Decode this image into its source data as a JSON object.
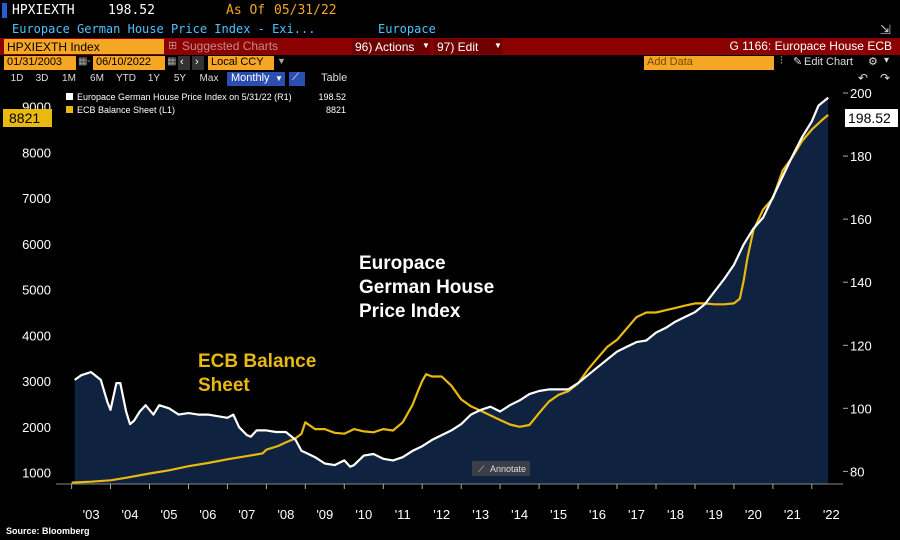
{
  "header": {
    "ticker": "HPXIEXTH",
    "last_value": "198.52",
    "as_of_label": "As Of",
    "as_of_date": "05/31/22",
    "description": "Europace German House Price Index - Exi...",
    "source_name": "Europace"
  },
  "command_bar": {
    "security": "HPXIEXTH Index",
    "suggested_charts": "Suggested Charts",
    "actions": "96) Actions",
    "edit": "97) Edit",
    "chart_name": "G 1166: Europace House ECB"
  },
  "date_bar": {
    "start_date": "01/31/2003",
    "end_date": "06/10/2022",
    "currency": "Local CCY",
    "add_data": "Add Data",
    "edit_chart": "Edit Chart"
  },
  "period_bar": {
    "periods": [
      "1D",
      "3D",
      "1M",
      "6M",
      "YTD",
      "1Y",
      "5Y",
      "Max"
    ],
    "frequency": "Monthly",
    "table": "Table"
  },
  "legend": {
    "house_label": "Europace German House Price Index on 5/31/22 (R1)",
    "house_value": "198.52",
    "ecb_label": "ECB Balance Sheet (L1)",
    "ecb_value": "8821"
  },
  "annotations": {
    "house_title": [
      "Europace",
      "German House",
      "Price Index"
    ],
    "ecb_title": [
      "ECB Balance",
      "Sheet"
    ],
    "annotate_button": "Annotate",
    "left_value_tag": "8821",
    "right_value_tag": "198.52"
  },
  "source": "Source: Bloomberg",
  "colors": {
    "ecb": "#e8b90f",
    "house": "#ffffff",
    "area": "#0f2240",
    "header_blue": "#1d3a8a",
    "command_red": "#8b0000",
    "amber": "#f5a623"
  },
  "chart_data": {
    "type": "line",
    "x_tick_labels": [
      "'03",
      "'04",
      "'05",
      "'06",
      "'07",
      "'08",
      "'09",
      "'10",
      "'11",
      "'12",
      "'13",
      "'14",
      "'15",
      "'16",
      "'17",
      "'18",
      "'19",
      "'20",
      "'21",
      "'22"
    ],
    "left_axis": {
      "ticks": [
        1000,
        2000,
        3000,
        4000,
        5000,
        6000,
        7000,
        8000,
        9000
      ],
      "range": [
        750,
        9300
      ]
    },
    "right_axis": {
      "ticks": [
        80,
        100,
        120,
        140,
        160,
        180,
        200
      ],
      "range": [
        76,
        200
      ]
    },
    "series": [
      {
        "name": "Europace German House Price Index on 5/31/22 (R1)",
        "axis": "right",
        "x": [
          2003.08,
          2003.25,
          2003.5,
          2003.75,
          2003.92,
          2004.0,
          2004.15,
          2004.25,
          2004.4,
          2004.5,
          2004.6,
          2004.75,
          2004.9,
          2005.0,
          2005.1,
          2005.25,
          2005.5,
          2005.75,
          2006.0,
          2006.25,
          2006.5,
          2006.75,
          2007.0,
          2007.15,
          2007.3,
          2007.5,
          2007.6,
          2007.75,
          2008.0,
          2008.25,
          2008.5,
          2008.75,
          2008.9,
          2009.0,
          2009.25,
          2009.5,
          2009.75,
          2010.0,
          2010.15,
          2010.25,
          2010.5,
          2010.75,
          2011.0,
          2011.25,
          2011.5,
          2011.75,
          2012.0,
          2012.25,
          2012.5,
          2012.75,
          2013.0,
          2013.25,
          2013.5,
          2013.75,
          2014.0,
          2014.25,
          2014.5,
          2014.75,
          2015.0,
          2015.25,
          2015.5,
          2015.75,
          2016.0,
          2016.25,
          2016.5,
          2016.75,
          2017.0,
          2017.25,
          2017.5,
          2017.75,
          2018.0,
          2018.25,
          2018.5,
          2018.75,
          2019.0,
          2019.25,
          2019.5,
          2019.75,
          2020.0,
          2020.25,
          2020.5,
          2020.75,
          2021.0,
          2021.25,
          2021.5,
          2021.75,
          2022.0,
          2022.17,
          2022.42
        ],
        "values": [
          109.0,
          110.5,
          111.5,
          109.0,
          102.0,
          99.5,
          108.0,
          108.0,
          99.0,
          95.0,
          96.0,
          99.0,
          101.0,
          99.5,
          98.0,
          101.0,
          100.0,
          98.0,
          98.5,
          98.0,
          98.0,
          97.5,
          97.0,
          98.0,
          94.0,
          91.5,
          91.0,
          93.0,
          93.0,
          92.5,
          92.5,
          90.0,
          86.5,
          86.0,
          84.5,
          82.5,
          82.0,
          83.5,
          81.5,
          82.0,
          85.0,
          85.5,
          84.0,
          83.5,
          84.5,
          86.5,
          88.0,
          90.0,
          91.5,
          93.0,
          95.0,
          98.0,
          99.5,
          100.5,
          99.0,
          101.0,
          102.5,
          104.5,
          105.5,
          106.0,
          106.0,
          106.0,
          108.0,
          110.5,
          113.0,
          115.5,
          118.0,
          119.5,
          121.0,
          121.5,
          124.0,
          125.5,
          127.5,
          129.0,
          130.5,
          133.0,
          137.0,
          141.0,
          145.5,
          152.0,
          157.0,
          160.5,
          167.0,
          173.5,
          180.0,
          186.0,
          191.0,
          196.0,
          198.52
        ]
      },
      {
        "name": "ECB Balance Sheet (L1)",
        "axis": "left",
        "x": [
          2003.0,
          2003.5,
          2004.0,
          2004.5,
          2005.0,
          2005.5,
          2006.0,
          2006.5,
          2007.0,
          2007.5,
          2007.9,
          2008.0,
          2008.3,
          2008.5,
          2008.75,
          2008.9,
          2009.0,
          2009.25,
          2009.5,
          2009.75,
          2010.0,
          2010.25,
          2010.5,
          2010.75,
          2011.0,
          2011.25,
          2011.5,
          2011.6,
          2011.75,
          2011.9,
          2012.0,
          2012.1,
          2012.25,
          2012.5,
          2012.75,
          2013.0,
          2013.25,
          2013.5,
          2013.75,
          2014.0,
          2014.25,
          2014.5,
          2014.75,
          2015.0,
          2015.25,
          2015.5,
          2015.75,
          2016.0,
          2016.25,
          2016.5,
          2016.75,
          2017.0,
          2017.25,
          2017.5,
          2017.75,
          2018.0,
          2018.25,
          2018.5,
          2018.75,
          2019.0,
          2019.25,
          2019.5,
          2019.75,
          2020.0,
          2020.15,
          2020.25,
          2020.35,
          2020.5,
          2020.75,
          2021.0,
          2021.25,
          2021.5,
          2021.75,
          2022.0,
          2022.25,
          2022.42
        ],
        "values": [
          780,
          800,
          830,
          900,
          980,
          1050,
          1140,
          1210,
          1290,
          1360,
          1420,
          1500,
          1580,
          1660,
          1750,
          1850,
          2100,
          1950,
          1950,
          1870,
          1850,
          1950,
          1900,
          1880,
          1950,
          1920,
          2100,
          2250,
          2480,
          2800,
          3000,
          3150,
          3100,
          3100,
          2900,
          2600,
          2450,
          2350,
          2250,
          2150,
          2050,
          2000,
          2040,
          2300,
          2550,
          2700,
          2780,
          2950,
          3250,
          3500,
          3750,
          3900,
          4150,
          4400,
          4500,
          4500,
          4550,
          4600,
          4650,
          4700,
          4700,
          4680,
          4680,
          4700,
          4800,
          5200,
          5700,
          6300,
          6750,
          7000,
          7600,
          7900,
          8250,
          8500,
          8700,
          8821
        ]
      }
    ]
  }
}
